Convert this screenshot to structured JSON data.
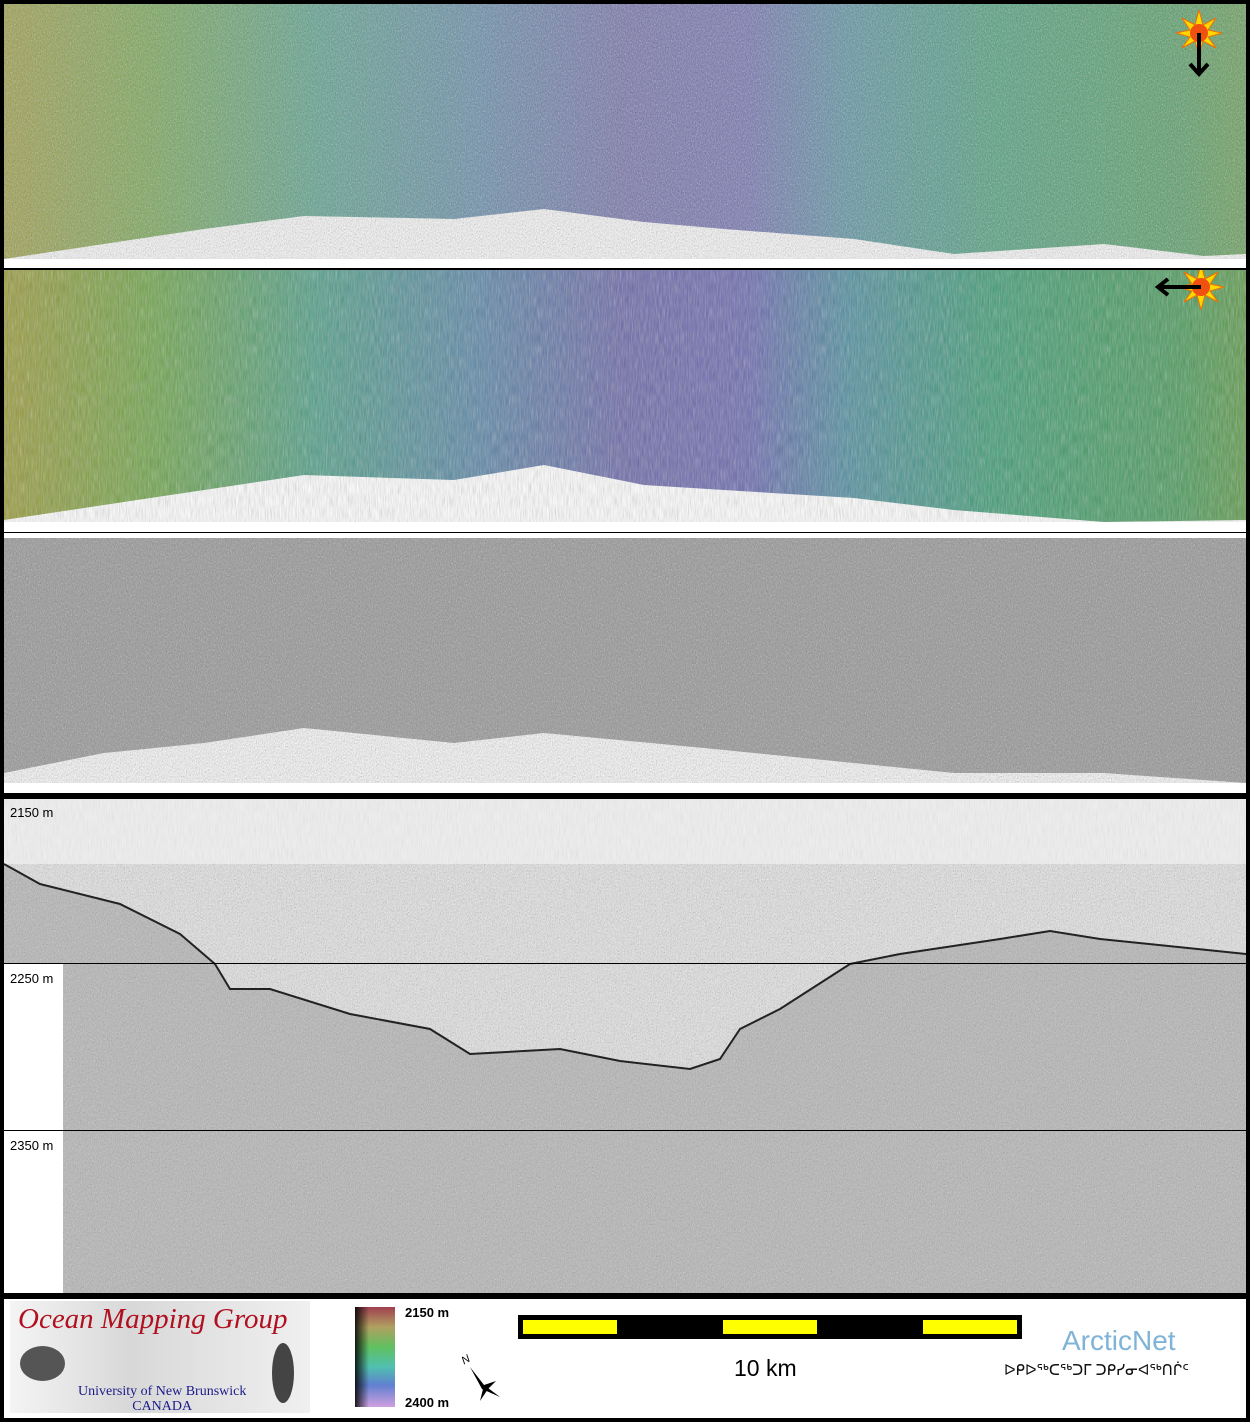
{
  "panels": {
    "sun_illumination_1": "illumination from north (arrow down)",
    "sun_illumination_2": "illumination from east (arrow left)"
  },
  "profile": {
    "depth_labels": [
      "2150 m",
      "2250 m",
      "2350 m"
    ]
  },
  "legend": {
    "logo_title": "Ocean Mapping Group",
    "logo_subtitle_1": "University of New Brunswick",
    "logo_subtitle_2": "CANADA",
    "colorbar_top": "2150 m",
    "colorbar_bottom": "2400 m",
    "north_label": "N",
    "scale_label": "10 km",
    "arcticnet": "ArcticNet",
    "arcticnet_syllabics": "ᐅᑭᐅᖅᑕᖅᑐᒥ ᑐᑭᓯᓂᐊᖅᑎᒌᑦ",
    "colors": {
      "scale_yellow": "#ffff00",
      "scale_black": "#000000",
      "logo_red": "#b01020",
      "arcticnet_blue": "#7fb3d8"
    }
  }
}
